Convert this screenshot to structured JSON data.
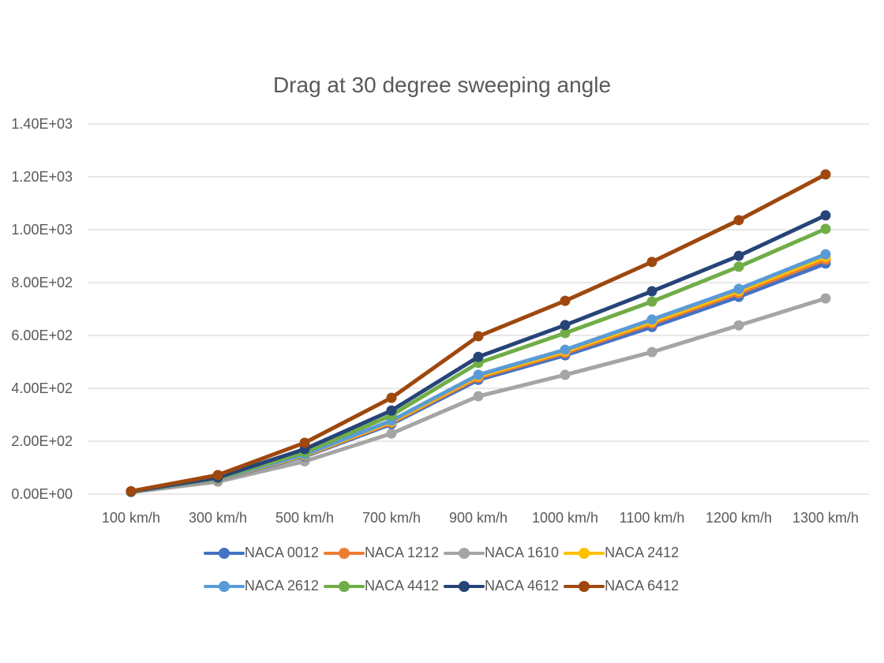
{
  "chart_data": {
    "type": "line",
    "title": "Drag at 30 degree sweeping angle",
    "xlabel": "",
    "ylabel": "",
    "categories": [
      "100 km/h",
      "300 km/h",
      "500 km/h",
      "700 km/h",
      "900 km/h",
      "1000 km/h",
      "1100 km/h",
      "1200 km/h",
      "1300 km/h"
    ],
    "ylim": [
      0,
      1400
    ],
    "yticks": [
      0,
      200,
      400,
      600,
      800,
      1000,
      1200,
      1400
    ],
    "ytick_labels": [
      "0.00E+00",
      "2.00E+02",
      "4.00E+02",
      "6.00E+02",
      "8.00E+02",
      "1.00E+03",
      "1.20E+03",
      "1.40E+03"
    ],
    "grid": true,
    "legend_position": "bottom",
    "series": [
      {
        "name": "NACA 0012",
        "color": "#4472C4",
        "values": [
          9,
          55,
          142,
          265,
          432,
          525,
          632,
          746,
          872
        ]
      },
      {
        "name": "NACA 1212",
        "color": "#ED7D31",
        "values": [
          9,
          56,
          145,
          270,
          440,
          534,
          645,
          760,
          887
        ]
      },
      {
        "name": "NACA 1610",
        "color": "#A5A5A5",
        "values": [
          7,
          47,
          124,
          229,
          370,
          451,
          537,
          638,
          740
        ]
      },
      {
        "name": "NACA 2412",
        "color": "#FFC000",
        "values": [
          9,
          57,
          147,
          274,
          446,
          540,
          652,
          768,
          897
        ]
      },
      {
        "name": "NACA 2612",
        "color": "#5B9BD5",
        "values": [
          9,
          58,
          149,
          278,
          451,
          546,
          660,
          776,
          907
        ]
      },
      {
        "name": "NACA 4412",
        "color": "#70AD47",
        "values": [
          10,
          61,
          158,
          298,
          496,
          609,
          728,
          860,
          1003
        ]
      },
      {
        "name": "NACA 4612",
        "color": "#264478",
        "values": [
          10,
          63,
          170,
          316,
          519,
          639,
          767,
          901,
          1054
        ]
      },
      {
        "name": "NACA 6412",
        "color": "#9E480E",
        "values": [
          11,
          72,
          194,
          364,
          597,
          731,
          878,
          1036,
          1209
        ]
      }
    ]
  }
}
